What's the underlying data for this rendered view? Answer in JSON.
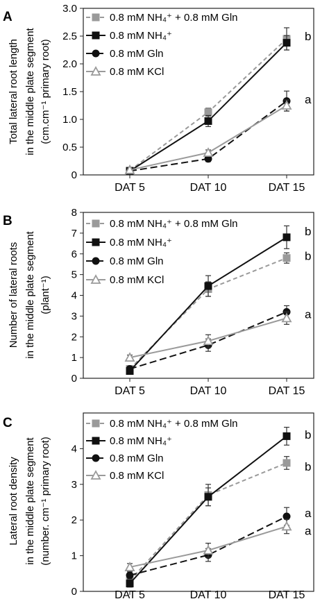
{
  "chart_data": [
    {
      "panel": "A",
      "type": "line",
      "ylabel_lines": [
        "Total  lateral root length",
        "in the middle plate segment",
        "(cm.cm⁻¹ primary root)"
      ],
      "categories": [
        "DAT 5",
        "DAT 10",
        "DAT 15"
      ],
      "ylim": [
        0,
        3.0
      ],
      "yticks": [
        "0",
        "0.5",
        "1.0",
        "1.5",
        "2.0",
        "2.5",
        "3.0"
      ],
      "yticks_values": [
        0,
        0.5,
        1.0,
        1.5,
        2.0,
        2.5,
        3.0
      ],
      "series": [
        {
          "name": "0.8 mM NH₄⁺ + 0.8 mM Gln",
          "values": [
            0.08,
            1.13,
            2.45
          ],
          "errors": [
            0.02,
            0.07,
            0.2
          ],
          "color": "#9a9a9a",
          "dash": "6,4",
          "marker": "square"
        },
        {
          "name": "0.8 mM NH₄⁺",
          "values": [
            0.07,
            0.97,
            2.38
          ],
          "errors": [
            0.02,
            0.1,
            0.13
          ],
          "color": "#111111",
          "dash": "",
          "marker": "square"
        },
        {
          "name": "0.8 mM Gln",
          "values": [
            0.07,
            0.29,
            1.33
          ],
          "errors": [
            0.02,
            0.05,
            0.18
          ],
          "color": "#111111",
          "dash": "10,5",
          "marker": "circle"
        },
        {
          "name": "0.8 mM KCl",
          "values": [
            0.09,
            0.4,
            1.25
          ],
          "errors": [
            0.02,
            0.05,
            0.1
          ],
          "color": "#9a9a9a",
          "dash": "",
          "marker": "triangle"
        }
      ],
      "annotations": [
        {
          "text": "b",
          "category": "DAT 15",
          "value": 2.5
        },
        {
          "text": "a",
          "category": "DAT 15",
          "value": 1.36
        }
      ]
    },
    {
      "panel": "B",
      "type": "line",
      "ylabel_lines": [
        "Number of lateral roots",
        "in the middle plate segment",
        "(plant⁻¹)"
      ],
      "categories": [
        "DAT 5",
        "DAT 10",
        "DAT 15"
      ],
      "ylim": [
        0,
        8
      ],
      "yticks": [
        "0",
        "1",
        "2",
        "3",
        "4",
        "5",
        "6",
        "7",
        "8"
      ],
      "yticks_values": [
        0,
        1,
        2,
        3,
        4,
        5,
        6,
        7,
        8
      ],
      "series": [
        {
          "name": "0.8 mM NH₄⁺ + 0.8 mM Gln",
          "values": [
            0.45,
            4.3,
            5.8
          ],
          "errors": [
            0.12,
            0.35,
            0.25
          ],
          "color": "#9a9a9a",
          "dash": "6,4",
          "marker": "square"
        },
        {
          "name": "0.8 mM NH₄⁺",
          "values": [
            0.35,
            4.45,
            6.8
          ],
          "errors": [
            0.12,
            0.5,
            0.55
          ],
          "color": "#111111",
          "dash": "",
          "marker": "square"
        },
        {
          "name": "0.8 mM Gln",
          "values": [
            0.45,
            1.6,
            3.2
          ],
          "errors": [
            0.1,
            0.3,
            0.3
          ],
          "color": "#111111",
          "dash": "10,5",
          "marker": "circle"
        },
        {
          "name": "0.8 mM KCl",
          "values": [
            1.0,
            1.8,
            2.9
          ],
          "errors": [
            0.12,
            0.3,
            0.3
          ],
          "color": "#9a9a9a",
          "dash": "",
          "marker": "triangle"
        }
      ],
      "annotations": [
        {
          "text": "b",
          "category": "DAT 15",
          "value": 7.1
        },
        {
          "text": "b",
          "category": "DAT 15",
          "value": 5.9
        },
        {
          "text": "a",
          "category": "DAT 15",
          "value": 3.1
        }
      ]
    },
    {
      "panel": "C",
      "type": "line",
      "ylabel_lines": [
        "Lateral root density",
        "in the middle plate segment",
        "(number. cm⁻¹ primary root)"
      ],
      "categories": [
        "DAT 5",
        "DAT 10",
        "DAT 15"
      ],
      "ylim": [
        0,
        5
      ],
      "yticks": [
        "0",
        "1",
        "2",
        "3",
        "4"
      ],
      "yticks_values": [
        0,
        1,
        2,
        3,
        4
      ],
      "series": [
        {
          "name": "0.8 mM NH₄⁺ + 0.8 mM Gln",
          "values": [
            0.3,
            2.7,
            3.6
          ],
          "errors": [
            0.1,
            0.3,
            0.18
          ],
          "color": "#9a9a9a",
          "dash": "6,4",
          "marker": "square"
        },
        {
          "name": "0.8 mM NH₄⁺",
          "values": [
            0.22,
            2.65,
            4.35
          ],
          "errors": [
            0.1,
            0.25,
            0.25
          ],
          "color": "#111111",
          "dash": "",
          "marker": "square"
        },
        {
          "name": "0.8 mM Gln",
          "values": [
            0.45,
            1.02,
            2.1
          ],
          "errors": [
            0.1,
            0.18,
            0.25
          ],
          "color": "#111111",
          "dash": "10,5",
          "marker": "circle"
        },
        {
          "name": "0.8 mM KCl",
          "values": [
            0.68,
            1.15,
            1.82
          ],
          "errors": [
            0.1,
            0.2,
            0.2
          ],
          "color": "#9a9a9a",
          "dash": "",
          "marker": "triangle"
        }
      ],
      "annotations": [
        {
          "text": "b",
          "category": "DAT 15",
          "value": 4.4
        },
        {
          "text": "b",
          "category": "DAT 15",
          "value": 3.5
        },
        {
          "text": "a",
          "category": "DAT 15",
          "value": 2.2
        },
        {
          "text": "a",
          "category": "DAT 15",
          "value": 1.7
        }
      ]
    }
  ]
}
